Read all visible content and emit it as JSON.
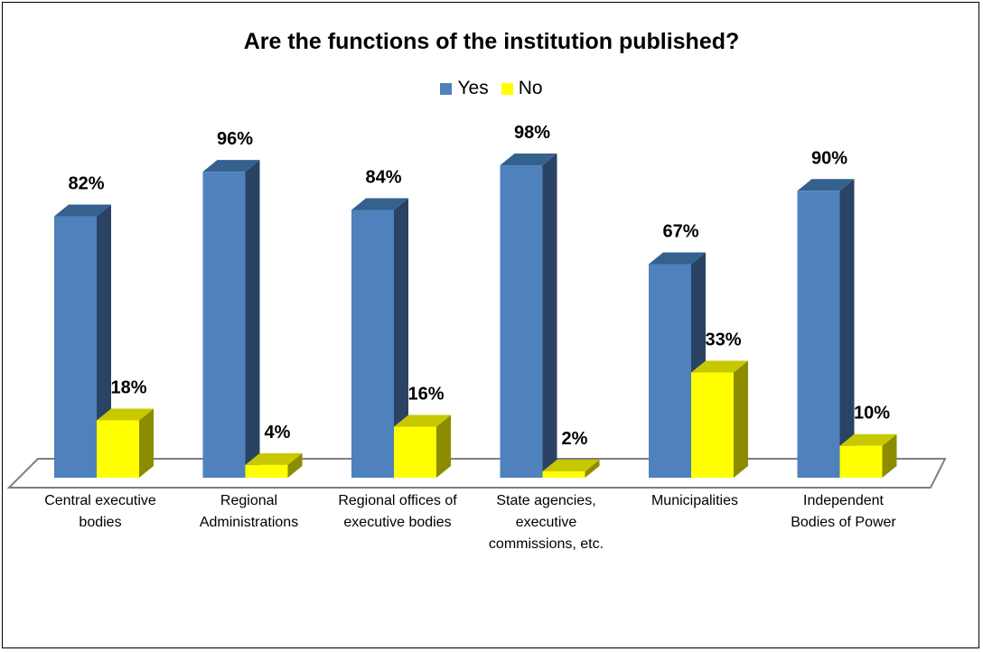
{
  "chart_data": {
    "type": "bar",
    "title": "Are the functions of the institution published?",
    "categories": [
      [
        "Central executive",
        "bodies"
      ],
      [
        "Regional",
        "Administrations"
      ],
      [
        "Regional offices of",
        "executive bodies"
      ],
      [
        "State agencies,",
        "executive",
        "commissions, etc."
      ],
      [
        "Municipalities"
      ],
      [
        "Independent",
        "Bodies of Power"
      ]
    ],
    "series": [
      {
        "name": "Yes",
        "values": [
          82,
          96,
          84,
          98,
          67,
          90
        ],
        "labels": [
          "82%",
          "96%",
          "84%",
          "98%",
          "67%",
          "90%"
        ],
        "color": "#4F81BD",
        "side": "#2A4365",
        "top": "#35618F"
      },
      {
        "name": "No",
        "values": [
          18,
          4,
          16,
          2,
          33,
          10
        ],
        "labels": [
          "18%",
          "4%",
          "16%",
          "2%",
          "33%",
          "10%"
        ],
        "color": "#FFFF00",
        "side": "#8C8C00",
        "top": "#C8C800"
      }
    ],
    "ylim": [
      0,
      100
    ],
    "grid": false,
    "legend": "top-center"
  }
}
